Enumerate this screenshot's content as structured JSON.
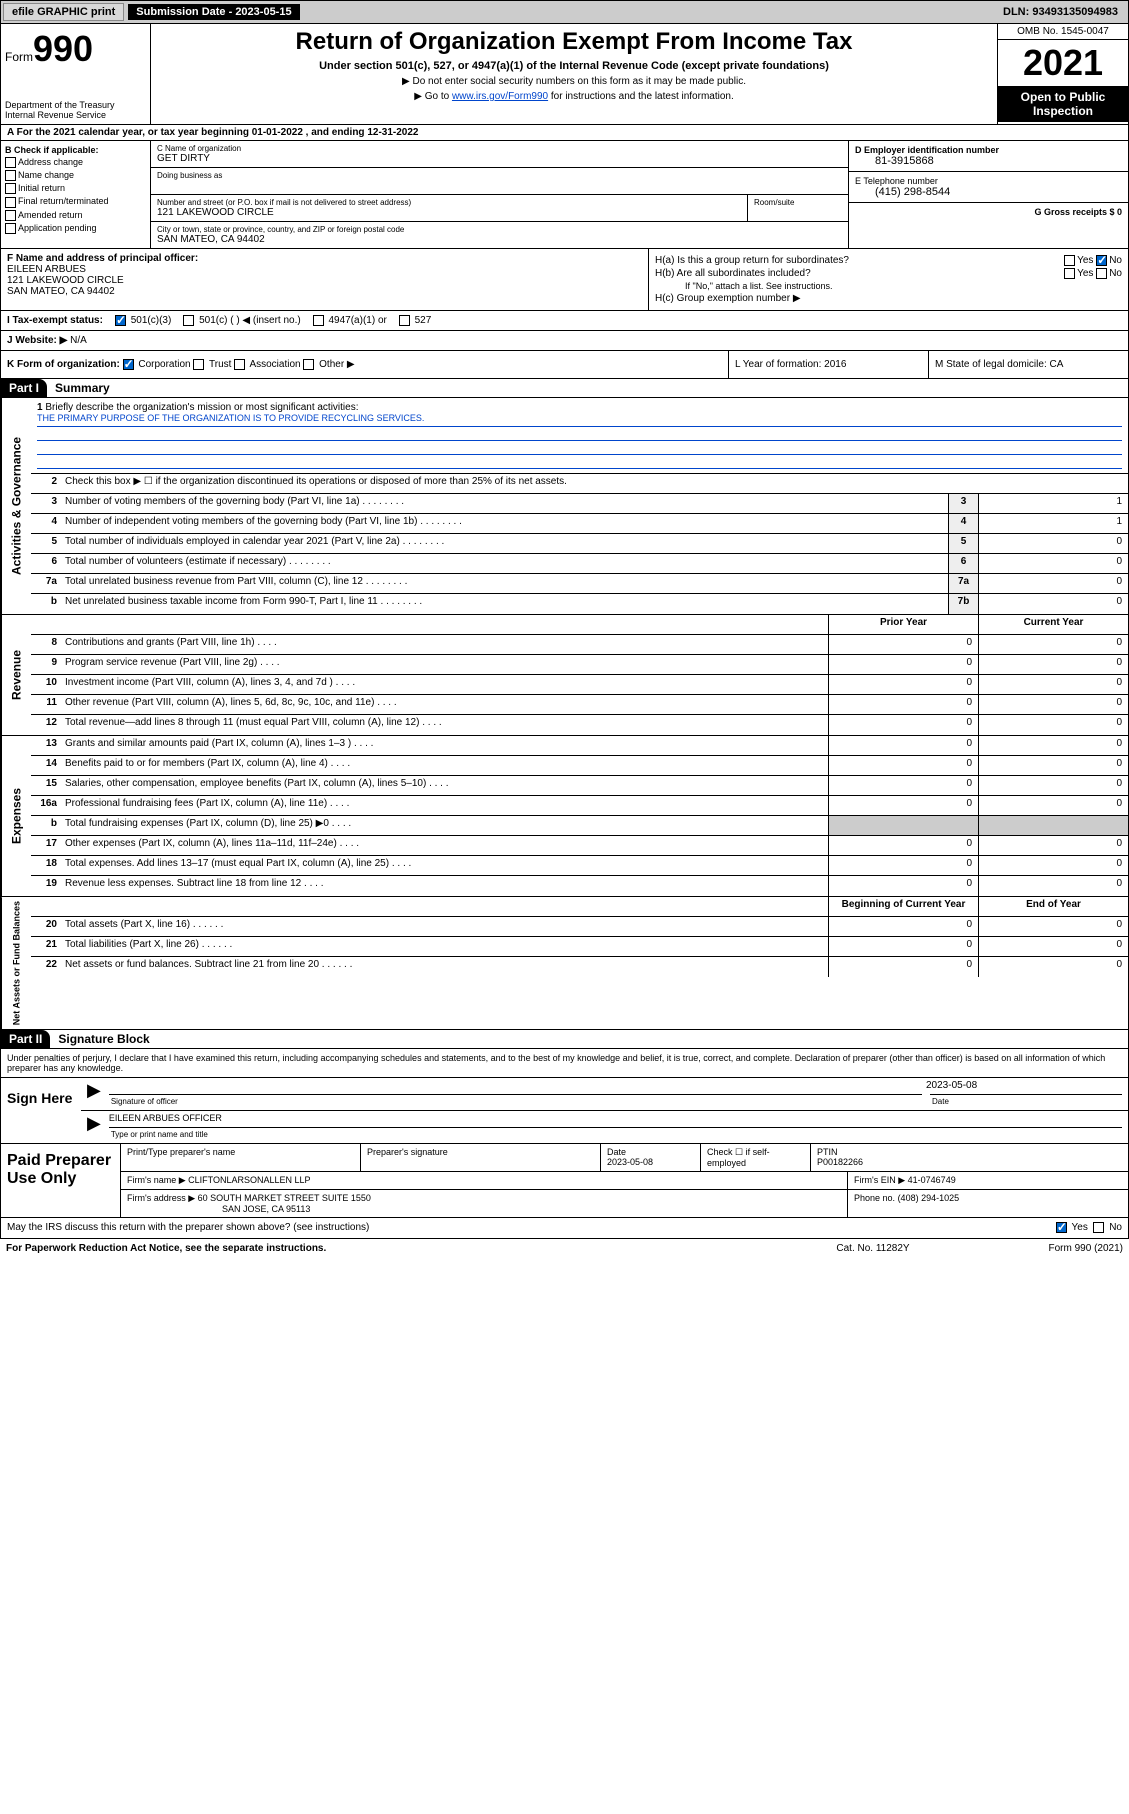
{
  "topbar": {
    "efile": "efile GRAPHIC print",
    "submission_label": "Submission Date - 2023-05-15",
    "dln": "DLN: 93493135094983"
  },
  "header": {
    "form_label": "Form",
    "form_num": "990",
    "dept": "Department of the Treasury\nInternal Revenue Service",
    "title": "Return of Organization Exempt From Income Tax",
    "subtitle": "Under section 501(c), 527, or 4947(a)(1) of the Internal Revenue Code (except private foundations)",
    "note1": "▶ Do not enter social security numbers on this form as it may be made public.",
    "note2": "▶ Go to ",
    "note2_link": "www.irs.gov/Form990",
    "note2_suffix": " for instructions and the latest information.",
    "omb": "OMB No. 1545-0047",
    "year": "2021",
    "inspection": "Open to Public Inspection"
  },
  "section_a": "A For the 2021 calendar year, or tax year beginning 01-01-2022   , and ending 12-31-2022",
  "section_b": {
    "heading": "B Check if applicable:",
    "items": [
      "Address change",
      "Name change",
      "Initial return",
      "Final return/terminated",
      "Amended return",
      "Application pending"
    ]
  },
  "section_c": {
    "name_label": "C Name of organization",
    "name": "GET DIRTY",
    "dba_label": "Doing business as",
    "addr_label": "Number and street (or P.O. box if mail is not delivered to street address)",
    "addr": "121 LAKEWOOD CIRCLE",
    "suite_label": "Room/suite",
    "city_label": "City or town, state or province, country, and ZIP or foreign postal code",
    "city": "SAN MATEO, CA  94402"
  },
  "section_d": {
    "label": "D Employer identification number",
    "value": "81-3915868"
  },
  "section_e": {
    "label": "E Telephone number",
    "value": "(415) 298-8544"
  },
  "section_g": {
    "label": "G Gross receipts $ 0"
  },
  "section_f": {
    "label": "F Name and address of principal officer:",
    "name": "EILEEN ARBUES",
    "addr1": "121 LAKEWOOD CIRCLE",
    "addr2": "SAN MATEO, CA  94402"
  },
  "section_h": {
    "ha": "H(a)  Is this a group return for subordinates?",
    "ha_no": "No",
    "hb": "H(b)  Are all subordinates included?",
    "hb_note": "If \"No,\" attach a list. See instructions.",
    "hc": "H(c)  Group exemption number ▶"
  },
  "section_i": {
    "label": "I  Tax-exempt status:",
    "opt1": "501(c)(3)",
    "opt2": "501(c) (   ) ◀ (insert no.)",
    "opt3": "4947(a)(1) or",
    "opt4": "527"
  },
  "section_j": {
    "label": "J  Website: ▶",
    "value": "N/A"
  },
  "section_k": {
    "label": "K Form of organization:",
    "opts": [
      "Corporation",
      "Trust",
      "Association",
      "Other ▶"
    ]
  },
  "section_l": {
    "label": "L Year of formation: 2016"
  },
  "section_m": {
    "label": "M State of legal domicile: CA"
  },
  "part1": {
    "header": "Part I",
    "title": "Summary",
    "q1": "Briefly describe the organization's mission or most significant activities:",
    "mission": "THE PRIMARY PURPOSE OF THE ORGANIZATION IS TO PROVIDE RECYCLING SERVICES.",
    "q2": "Check this box ▶ ☐ if the organization discontinued its operations or disposed of more than 25% of its net assets.",
    "rows_gov": [
      {
        "n": "3",
        "d": "Number of voting members of the governing body (Part VI, line 1a)",
        "box": "3",
        "v": "1"
      },
      {
        "n": "4",
        "d": "Number of independent voting members of the governing body (Part VI, line 1b)",
        "box": "4",
        "v": "1"
      },
      {
        "n": "5",
        "d": "Total number of individuals employed in calendar year 2021 (Part V, line 2a)",
        "box": "5",
        "v": "0"
      },
      {
        "n": "6",
        "d": "Total number of volunteers (estimate if necessary)",
        "box": "6",
        "v": "0"
      },
      {
        "n": "7a",
        "d": "Total unrelated business revenue from Part VIII, column (C), line 12",
        "box": "7a",
        "v": "0"
      },
      {
        "n": "b",
        "d": "Net unrelated business taxable income from Form 990-T, Part I, line 11",
        "box": "7b",
        "v": "0"
      }
    ],
    "col_prior": "Prior Year",
    "col_current": "Current Year",
    "rows_rev": [
      {
        "n": "8",
        "d": "Contributions and grants (Part VIII, line 1h)",
        "p": "0",
        "c": "0"
      },
      {
        "n": "9",
        "d": "Program service revenue (Part VIII, line 2g)",
        "p": "0",
        "c": "0"
      },
      {
        "n": "10",
        "d": "Investment income (Part VIII, column (A), lines 3, 4, and 7d )",
        "p": "0",
        "c": "0"
      },
      {
        "n": "11",
        "d": "Other revenue (Part VIII, column (A), lines 5, 6d, 8c, 9c, 10c, and 11e)",
        "p": "0",
        "c": "0"
      },
      {
        "n": "12",
        "d": "Total revenue—add lines 8 through 11 (must equal Part VIII, column (A), line 12)",
        "p": "0",
        "c": "0"
      }
    ],
    "rows_exp": [
      {
        "n": "13",
        "d": "Grants and similar amounts paid (Part IX, column (A), lines 1–3 )",
        "p": "0",
        "c": "0"
      },
      {
        "n": "14",
        "d": "Benefits paid to or for members (Part IX, column (A), line 4)",
        "p": "0",
        "c": "0"
      },
      {
        "n": "15",
        "d": "Salaries, other compensation, employee benefits (Part IX, column (A), lines 5–10)",
        "p": "0",
        "c": "0"
      },
      {
        "n": "16a",
        "d": "Professional fundraising fees (Part IX, column (A), line 11e)",
        "p": "0",
        "c": "0"
      },
      {
        "n": "b",
        "d": "Total fundraising expenses (Part IX, column (D), line 25) ▶0",
        "p": "",
        "c": "",
        "shaded": true
      },
      {
        "n": "17",
        "d": "Other expenses (Part IX, column (A), lines 11a–11d, 11f–24e)",
        "p": "0",
        "c": "0"
      },
      {
        "n": "18",
        "d": "Total expenses. Add lines 13–17 (must equal Part IX, column (A), line 25)",
        "p": "0",
        "c": "0"
      },
      {
        "n": "19",
        "d": "Revenue less expenses. Subtract line 18 from line 12",
        "p": "0",
        "c": "0"
      }
    ],
    "col_begin": "Beginning of Current Year",
    "col_end": "End of Year",
    "rows_net": [
      {
        "n": "20",
        "d": "Total assets (Part X, line 16)",
        "p": "0",
        "c": "0"
      },
      {
        "n": "21",
        "d": "Total liabilities (Part X, line 26)",
        "p": "0",
        "c": "0"
      },
      {
        "n": "22",
        "d": "Net assets or fund balances. Subtract line 21 from line 20",
        "p": "0",
        "c": "0"
      }
    ]
  },
  "side_labels": {
    "gov": "Activities & Governance",
    "rev": "Revenue",
    "exp": "Expenses",
    "net": "Net Assets or Fund Balances"
  },
  "part2": {
    "header": "Part II",
    "title": "Signature Block",
    "text": "Under penalties of perjury, I declare that I have examined this return, including accompanying schedules and statements, and to the best of my knowledge and belief, it is true, correct, and complete. Declaration of preparer (other than officer) is based on all information of which preparer has any knowledge.",
    "sign_here": "Sign Here",
    "sig_officer": "Signature of officer",
    "sig_date": "2023-05-08",
    "date_label": "Date",
    "officer_name": "EILEEN ARBUES  OFFICER",
    "name_title_label": "Type or print name and title"
  },
  "prep": {
    "label": "Paid Preparer Use Only",
    "h1": "Print/Type preparer's name",
    "h2": "Preparer's signature",
    "h3": "Date",
    "date": "2023-05-08",
    "h4": "Check ☐ if self-employed",
    "h5": "PTIN",
    "ptin": "P00182266",
    "firm_label": "Firm's name    ▶",
    "firm": "CLIFTONLARSONALLEN LLP",
    "ein_label": "Firm's EIN ▶",
    "ein": "41-0746749",
    "addr_label": "Firm's address ▶",
    "addr1": "60 SOUTH MARKET STREET SUITE 1550",
    "addr2": "SAN JOSE, CA  95113",
    "phone_label": "Phone no.",
    "phone": "(408) 294-1025"
  },
  "bottom": {
    "q": "May the IRS discuss this return with the preparer shown above? (see instructions)",
    "yes": "Yes",
    "no": "No"
  },
  "footer": {
    "left": "For Paperwork Reduction Act Notice, see the separate instructions.",
    "mid": "Cat. No. 11282Y",
    "right": "Form 990 (2021)"
  }
}
